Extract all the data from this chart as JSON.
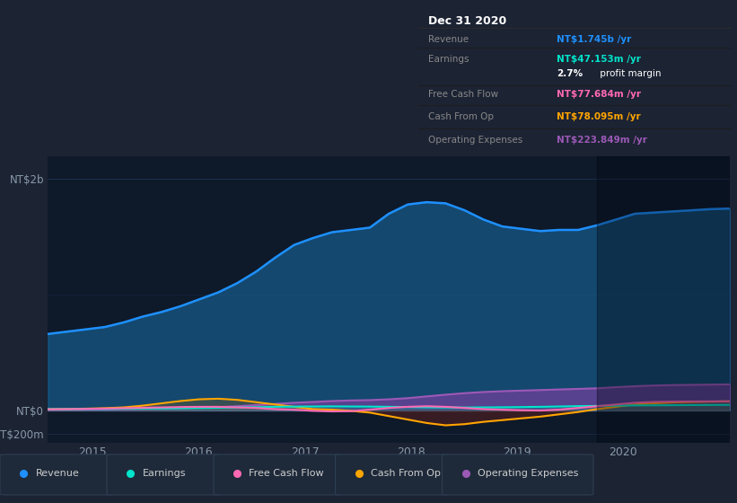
{
  "bg_color": "#1c2333",
  "plot_bg_color": "#0e1929",
  "grid_color": "#1e3050",
  "xticks": [
    2015,
    2016,
    2017,
    2018,
    2019,
    2020
  ],
  "legend": [
    {
      "label": "Revenue",
      "color": "#1e90ff"
    },
    {
      "label": "Earnings",
      "color": "#00e5cc"
    },
    {
      "label": "Free Cash Flow",
      "color": "#ff69b4"
    },
    {
      "label": "Cash From Op",
      "color": "#ffa500"
    },
    {
      "label": "Operating Expenses",
      "color": "#9b59b6"
    }
  ],
  "info_title": "Dec 31 2020",
  "info_rows": [
    {
      "label": "Revenue",
      "value": "NT$1.745b /yr",
      "color": "#1e90ff"
    },
    {
      "label": "Earnings",
      "value": "NT$47.153m /yr",
      "color": "#00e5cc"
    },
    {
      "label": "",
      "value": "2.7% profit margin",
      "color": "#ffffff"
    },
    {
      "label": "Free Cash Flow",
      "value": "NT$77.684m /yr",
      "color": "#ff69b4"
    },
    {
      "label": "Cash From Op",
      "value": "NT$78.095m /yr",
      "color": "#ffa500"
    },
    {
      "label": "Operating Expenses",
      "value": "NT$223.849m /yr",
      "color": "#9b59b6"
    }
  ],
  "revenue_m": [
    660,
    680,
    700,
    720,
    760,
    810,
    850,
    900,
    960,
    1020,
    1100,
    1200,
    1320,
    1430,
    1490,
    1540,
    1560,
    1580,
    1700,
    1780,
    1800,
    1790,
    1730,
    1650,
    1590,
    1570,
    1550,
    1560,
    1560,
    1600,
    1650,
    1700,
    1710,
    1720,
    1730,
    1740,
    1745
  ],
  "earnings_m": [
    10,
    10,
    12,
    12,
    14,
    15,
    16,
    18,
    20,
    22,
    25,
    27,
    30,
    32,
    33,
    34,
    33,
    32,
    30,
    28,
    26,
    25,
    24,
    25,
    26,
    28,
    30,
    33,
    36,
    38,
    40,
    42,
    43,
    44,
    45,
    46,
    47
  ],
  "fcf_m": [
    8,
    10,
    12,
    15,
    18,
    22,
    25,
    28,
    30,
    30,
    25,
    20,
    10,
    5,
    -5,
    -10,
    -8,
    5,
    20,
    30,
    35,
    30,
    20,
    10,
    5,
    0,
    -2,
    5,
    20,
    35,
    50,
    65,
    72,
    75,
    76,
    77,
    78
  ],
  "cashop_m": [
    10,
    12,
    14,
    18,
    25,
    40,
    60,
    80,
    95,
    100,
    90,
    70,
    50,
    30,
    10,
    5,
    -5,
    -20,
    -50,
    -80,
    -110,
    -130,
    -120,
    -100,
    -85,
    -70,
    -55,
    -35,
    -15,
    10,
    30,
    50,
    60,
    68,
    72,
    75,
    78
  ],
  "opex_m": [
    5,
    6,
    7,
    8,
    10,
    12,
    15,
    18,
    22,
    28,
    35,
    45,
    55,
    65,
    72,
    80,
    85,
    88,
    95,
    105,
    120,
    135,
    148,
    158,
    165,
    170,
    175,
    180,
    185,
    190,
    200,
    208,
    214,
    218,
    220,
    222,
    224
  ],
  "ylim_min": -280000000,
  "ylim_max": 2200000000
}
